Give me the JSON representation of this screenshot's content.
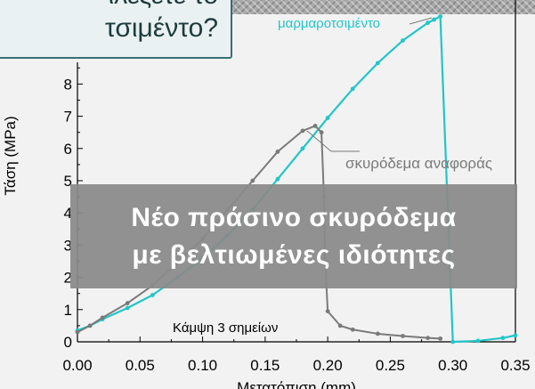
{
  "slide": {
    "title_line1": "ιλέξετε το",
    "title_line2": "τσιμέντο?",
    "banner_line1": "Νέο πράσινο σκυρόδεμα",
    "banner_line2": "με βελτιωμένες ιδιότητες"
  },
  "chart_data": {
    "type": "line",
    "title": "",
    "xlabel": "Μετατόπιση (mm)",
    "ylabel": "Τάση (MPa)",
    "xlim": [
      0.0,
      0.35
    ],
    "ylim": [
      0,
      9.5
    ],
    "x_ticks": [
      "0.00",
      "0.05",
      "0.10",
      "0.15",
      "0.20",
      "0.25",
      "0.30",
      "0.35"
    ],
    "y_ticks": [
      "0",
      "1",
      "2",
      "3",
      "4",
      "5",
      "6",
      "7",
      "8"
    ],
    "grid": false,
    "annotations": {
      "test_type": "Κάμψη 3 σημείων",
      "marble_label": "μαρμαροτσιμέντο",
      "reference_label": "σκυρόδεμα αναφοράς"
    },
    "series": [
      {
        "name": "μαρμαροτσιμέντο",
        "color": "#22c5c8",
        "x": [
          0.0,
          0.01,
          0.02,
          0.04,
          0.06,
          0.08,
          0.1,
          0.12,
          0.14,
          0.16,
          0.18,
          0.2,
          0.22,
          0.24,
          0.26,
          0.28,
          0.285,
          0.29,
          0.3,
          0.32,
          0.34,
          0.35
        ],
        "y": [
          0.35,
          0.5,
          0.7,
          1.05,
          1.45,
          2.0,
          2.6,
          3.3,
          4.1,
          5.05,
          6.0,
          6.95,
          7.85,
          8.65,
          9.35,
          9.9,
          10.0,
          10.1,
          0.0,
          0.03,
          0.12,
          0.2
        ]
      },
      {
        "name": "σκυρόδεμα αναφοράς",
        "color": "#7a7a7a",
        "x": [
          0.0,
          0.01,
          0.02,
          0.04,
          0.06,
          0.08,
          0.1,
          0.12,
          0.14,
          0.16,
          0.18,
          0.19,
          0.195,
          0.197,
          0.198,
          0.2,
          0.21,
          0.22,
          0.24,
          0.26,
          0.28,
          0.29
        ],
        "y": [
          0.3,
          0.5,
          0.75,
          1.2,
          1.75,
          2.45,
          3.2,
          4.1,
          5.0,
          5.9,
          6.55,
          6.7,
          6.5,
          4.5,
          2.5,
          0.95,
          0.5,
          0.38,
          0.25,
          0.18,
          0.12,
          0.1
        ]
      }
    ]
  }
}
